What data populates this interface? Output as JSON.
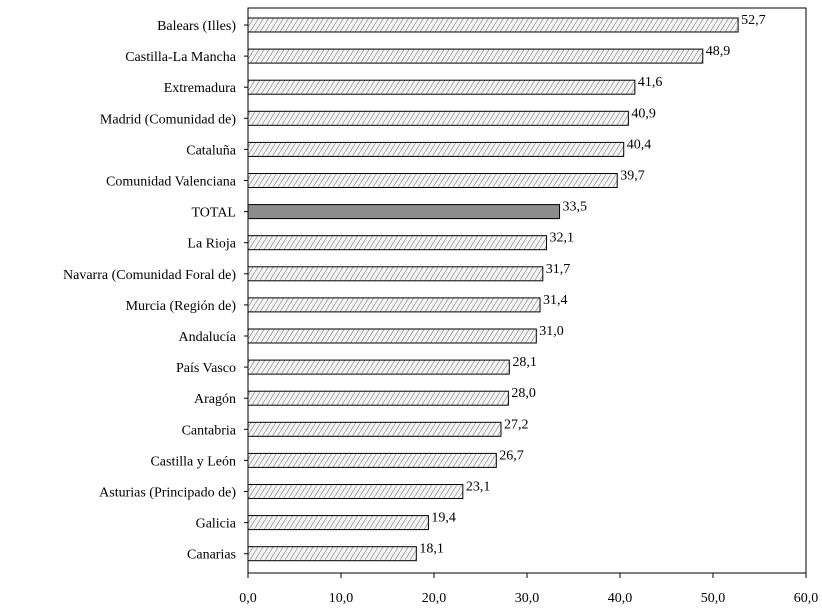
{
  "chart_data": {
    "type": "bar",
    "orientation": "horizontal",
    "categories": [
      "Balears (Illes)",
      "Castilla-La Mancha",
      "Extremadura",
      "Madrid (Comunidad de)",
      "Cataluña",
      "Comunidad Valenciana",
      "TOTAL",
      "La Rioja",
      "Navarra (Comunidad Foral de)",
      "Murcia (Región de)",
      "Andalucía",
      "País Vasco",
      "Aragón",
      "Cantabria",
      "Castilla y León",
      "Asturias (Principado de)",
      "Galicia",
      "Canarias"
    ],
    "values": [
      52.7,
      48.9,
      41.6,
      40.9,
      40.4,
      39.7,
      33.5,
      32.1,
      31.7,
      31.4,
      31.0,
      28.1,
      28.0,
      27.2,
      26.7,
      23.1,
      19.4,
      18.1
    ],
    "value_labels": [
      "52,7",
      "48,9",
      "41,6",
      "40,9",
      "40,4",
      "39,7",
      "33,5",
      "32,1",
      "31,7",
      "31,4",
      "31,0",
      "28,1",
      "28,0",
      "27,2",
      "26,7",
      "23,1",
      "19,4",
      "18,1"
    ],
    "xlim": [
      0,
      60
    ],
    "xticks": [
      0,
      10,
      20,
      30,
      40,
      50,
      60
    ],
    "xtick_labels": [
      "0,0",
      "10,0",
      "20,0",
      "30,0",
      "40,0",
      "50,0",
      "60,0"
    ],
    "highlight_category": "TOTAL",
    "grid": false,
    "legend": "none",
    "colors": {
      "bar_fill": "#f4f4f4",
      "bar_hatch": "#9a9a9a",
      "highlight_fill": "#8c8c8c",
      "stroke": "#000000"
    }
  }
}
